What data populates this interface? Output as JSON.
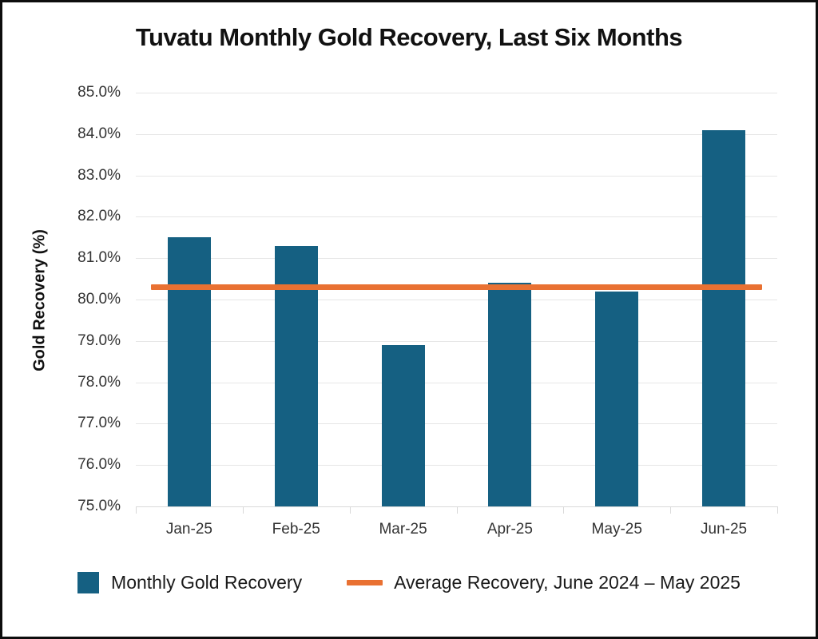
{
  "chart_data": {
    "type": "bar",
    "title": "Tuvatu Monthly Gold Recovery, Last Six Months",
    "xlabel": "",
    "ylabel": "Gold Recovery (%)",
    "categories": [
      "Jan-25",
      "Feb-25",
      "Mar-25",
      "Apr-25",
      "May-25",
      "Jun-25"
    ],
    "series": [
      {
        "name": "Monthly Gold Recovery",
        "type": "bar",
        "color": "#156082",
        "values": [
          81.5,
          81.3,
          78.9,
          80.4,
          80.2,
          84.1
        ]
      },
      {
        "name": "Average Recovery, June 2024 – May 2025",
        "type": "line",
        "color": "#E97132",
        "value": 80.3
      }
    ],
    "ylim": [
      75,
      85
    ],
    "ytick_step": 1,
    "ytick_decimals": 1,
    "ytick_suffix": "%",
    "grid": true,
    "legend_position": "bottom",
    "gridline_color": "#E6E6E6",
    "axis_color": "#D9D9D9"
  }
}
